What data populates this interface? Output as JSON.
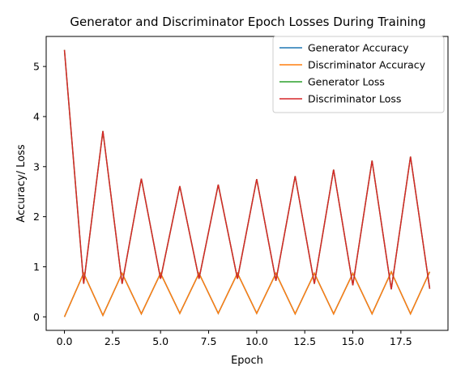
{
  "chart_data": {
    "type": "line",
    "title": "Generator and Discriminator Epoch Losses During Training",
    "xlabel": "Epoch",
    "ylabel": "Accuracy/ Loss",
    "xlim": [
      -0.95,
      19.95
    ],
    "ylim": [
      -0.27,
      5.6
    ],
    "xticks": [
      0,
      2.5,
      5,
      7.5,
      10,
      12.5,
      15,
      17.5
    ],
    "xtick_labels": [
      "0.0",
      "2.5",
      "5.0",
      "7.5",
      "10.0",
      "12.5",
      "15.0",
      "17.5"
    ],
    "yticks": [
      0,
      1,
      2,
      3,
      4,
      5
    ],
    "ytick_labels": [
      "0",
      "1",
      "2",
      "3",
      "4",
      "5"
    ],
    "grid": false,
    "legend_position": "top-right",
    "x": [
      0,
      1,
      2,
      3,
      4,
      5,
      6,
      7,
      8,
      9,
      10,
      11,
      12,
      13,
      14,
      15,
      16,
      17,
      18,
      19
    ],
    "series": [
      {
        "name": "Generator Accuracy",
        "color": "#1f77b4",
        "values": [
          0.0,
          0.87,
          0.03,
          0.87,
          0.06,
          0.87,
          0.07,
          0.87,
          0.07,
          0.87,
          0.07,
          0.87,
          0.06,
          0.87,
          0.06,
          0.87,
          0.06,
          0.9,
          0.06,
          0.9
        ]
      },
      {
        "name": "Discriminator Accuracy",
        "color": "#ff7f0e",
        "values": [
          0.0,
          0.87,
          0.03,
          0.87,
          0.06,
          0.87,
          0.07,
          0.87,
          0.07,
          0.87,
          0.07,
          0.87,
          0.06,
          0.87,
          0.06,
          0.87,
          0.06,
          0.9,
          0.06,
          0.9
        ]
      },
      {
        "name": "Generator Loss",
        "color": "#2ca02c",
        "values": [
          5.33,
          0.66,
          3.71,
          0.66,
          2.76,
          0.76,
          2.61,
          0.76,
          2.64,
          0.76,
          2.75,
          0.72,
          2.81,
          0.66,
          2.94,
          0.63,
          3.12,
          0.55,
          3.2,
          0.56
        ]
      },
      {
        "name": "Discriminator Loss",
        "color": "#d62728",
        "values": [
          5.33,
          0.66,
          3.71,
          0.66,
          2.76,
          0.76,
          2.61,
          0.76,
          2.64,
          0.76,
          2.75,
          0.72,
          2.81,
          0.66,
          2.94,
          0.63,
          3.12,
          0.55,
          3.2,
          0.56
        ]
      }
    ]
  }
}
